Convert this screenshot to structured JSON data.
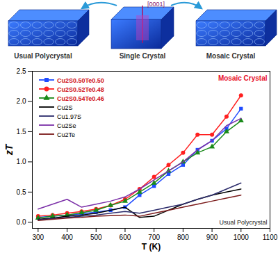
{
  "diagram": {
    "axis_label": "[0001]",
    "crystals": [
      "Usual Polycrystal",
      "Single Crystal",
      "Mosaic Crystal"
    ]
  },
  "chart_data": {
    "type": "line",
    "xlabel": "T (K)",
    "ylabel": "zT",
    "x": [
      300,
      350,
      400,
      450,
      500,
      550,
      600,
      650,
      700,
      750,
      800,
      850,
      900,
      950,
      1000
    ],
    "series": [
      {
        "name": "Cu2S0.50Te0.50",
        "color": "#1f4bff",
        "marker": "square",
        "values": [
          0.08,
          0.1,
          0.12,
          0.14,
          0.17,
          0.2,
          0.25,
          0.45,
          0.6,
          0.8,
          0.95,
          1.2,
          1.35,
          1.55,
          1.88
        ]
      },
      {
        "name": "Cu2S0.52Te0.48",
        "color": "#ff2020",
        "marker": "circle",
        "values": [
          0.1,
          0.12,
          0.15,
          0.18,
          0.22,
          0.28,
          0.38,
          0.55,
          0.75,
          0.95,
          1.15,
          1.45,
          1.45,
          1.75,
          2.1
        ]
      },
      {
        "name": "Cu2S0.54Te0.46",
        "color": "#1a8a1a",
        "marker": "triangle",
        "values": [
          0.07,
          0.1,
          0.12,
          0.16,
          0.2,
          0.28,
          0.35,
          0.5,
          0.65,
          0.85,
          1.0,
          1.15,
          1.25,
          1.5,
          1.68
        ]
      },
      {
        "name": "Cu2S",
        "color": "#000000",
        "values": [
          0.05,
          0.07,
          0.1,
          0.12,
          0.15,
          0.2,
          0.25,
          0.08,
          0.1,
          0.2,
          0.3,
          0.38,
          0.45,
          0.5,
          0.55
        ]
      },
      {
        "name": "Cu1.97S",
        "color": "#2b2b6b",
        "values": [
          0.04,
          0.06,
          0.08,
          0.1,
          0.12,
          0.15,
          0.18,
          0.15,
          0.2,
          0.25,
          0.3,
          0.38,
          0.45,
          0.55,
          0.65
        ]
      },
      {
        "name": "Cu2Se",
        "color": "#7b2fa8",
        "values": [
          0.22,
          0.3,
          0.38,
          0.25,
          0.3,
          0.35,
          0.42,
          0.55,
          0.7,
          0.85,
          1.0,
          1.2,
          1.35,
          1.6,
          1.72
        ]
      },
      {
        "name": "Cu2Te",
        "color": "#7b1a1a",
        "values": [
          0.03,
          0.05,
          0.07,
          0.08,
          0.1,
          0.11,
          0.12,
          0.1,
          0.15,
          0.2,
          0.25,
          0.3,
          0.35,
          0.4,
          0.45
        ]
      }
    ],
    "xlim": [
      280,
      1100
    ],
    "xticks": [
      300,
      400,
      500,
      600,
      700,
      800,
      900,
      1000,
      1100
    ],
    "ylim": [
      -0.1,
      2.5
    ],
    "yticks": [
      {
        "value": 0,
        "label": "0.0"
      },
      0.5,
      {
        "value": 1,
        "label": "1.0"
      },
      1.5,
      {
        "value": 2,
        "label": "2.0"
      },
      2.5
    ],
    "annotations": [
      "Mosaic Crystal",
      "Usual Polycrystal"
    ],
    "legend": "upper left",
    "grid": false
  }
}
